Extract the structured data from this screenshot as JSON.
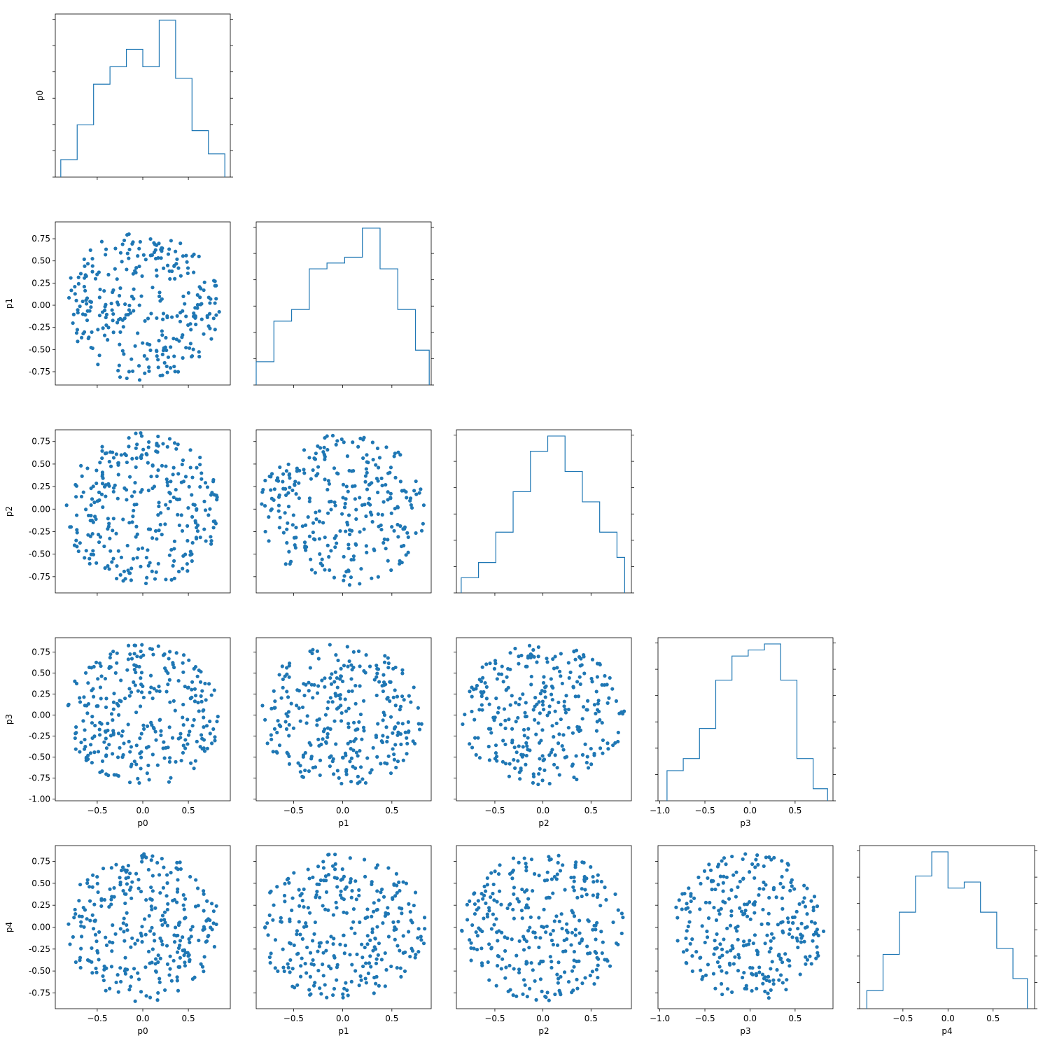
{
  "figure": {
    "parameters": [
      "p0",
      "p1",
      "p2",
      "p3",
      "p4"
    ],
    "histogram_color": "#1f77b4",
    "point_color": "#1f77b4"
  },
  "chart_data": [
    {
      "type": "histogram",
      "param": "p0",
      "row": 0,
      "col": 0,
      "bin_edges": [
        -0.9,
        -0.72,
        -0.54,
        -0.36,
        -0.18,
        0.0,
        0.18,
        0.36,
        0.54,
        0.72,
        0.9
      ],
      "counts": [
        3,
        9,
        16,
        19,
        22,
        19,
        27,
        17,
        8,
        4
      ],
      "ylabel": "p0"
    },
    {
      "type": "scatter",
      "x_param": "p0",
      "y_param": "p1",
      "row": 1,
      "col": 0,
      "xlim": [
        -0.96,
        0.96
      ],
      "ylim": [
        -0.9,
        0.94
      ],
      "yticks": [
        "-0.75",
        "-0.50",
        "-0.25",
        "0.00",
        "0.25",
        "0.50",
        "0.75"
      ],
      "ylabel": "p1",
      "n_points": 300
    },
    {
      "type": "histogram",
      "param": "p1",
      "row": 1,
      "col": 1,
      "bin_edges": [
        -0.88,
        -0.7,
        -0.52,
        -0.34,
        -0.16,
        0.02,
        0.2,
        0.38,
        0.56,
        0.74,
        0.88
      ],
      "counts": [
        4,
        11,
        13,
        20,
        21,
        22,
        27,
        20,
        13,
        6
      ]
    },
    {
      "type": "scatter",
      "x_param": "p0",
      "y_param": "p2",
      "row": 2,
      "col": 0,
      "xlim": [
        -0.96,
        0.96
      ],
      "ylim": [
        -0.93,
        0.88
      ],
      "yticks": [
        "-0.75",
        "-0.50",
        "-0.25",
        "0.00",
        "0.25",
        "0.50",
        "0.75"
      ],
      "ylabel": "p2",
      "n_points": 300
    },
    {
      "type": "scatter",
      "x_param": "p1",
      "y_param": "p2",
      "row": 2,
      "col": 1,
      "n_points": 300
    },
    {
      "type": "histogram",
      "param": "p2",
      "row": 2,
      "col": 2,
      "bin_edges": [
        -0.85,
        -0.67,
        -0.49,
        -0.31,
        -0.13,
        0.05,
        0.23,
        0.41,
        0.59,
        0.77,
        0.85
      ],
      "counts": [
        3,
        6,
        12,
        20,
        28,
        31,
        24,
        18,
        12,
        7
      ]
    },
    {
      "type": "scatter",
      "x_param": "p0",
      "y_param": "p3",
      "row": 3,
      "col": 0,
      "xlim": [
        -0.96,
        0.96
      ],
      "ylim": [
        -1.02,
        0.92
      ],
      "yticks": [
        "-1.00",
        "-0.75",
        "-0.50",
        "-0.25",
        "0.00",
        "0.25",
        "0.50",
        "0.75"
      ],
      "ylabel": "p3",
      "xticks": [
        "-0.5",
        "0.0",
        "0.5"
      ],
      "xlabel": "p0",
      "n_points": 300
    },
    {
      "type": "scatter",
      "x_param": "p1",
      "y_param": "p3",
      "row": 3,
      "col": 1,
      "xticks": [
        "-0.5",
        "0.0",
        "0.5"
      ],
      "xlabel": "p1",
      "n_points": 300
    },
    {
      "type": "scatter",
      "x_param": "p2",
      "y_param": "p3",
      "row": 3,
      "col": 2,
      "xticks": [
        "-0.5",
        "0.0",
        "0.5"
      ],
      "xlabel": "p2",
      "n_points": 300
    },
    {
      "type": "histogram",
      "param": "p3",
      "row": 3,
      "col": 3,
      "bin_edges": [
        -0.92,
        -0.74,
        -0.56,
        -0.38,
        -0.2,
        -0.02,
        0.16,
        0.34,
        0.52,
        0.7,
        0.86
      ],
      "counts": [
        5,
        7,
        12,
        20,
        24,
        25,
        26,
        20,
        7,
        2
      ],
      "xticks": [
        "-1.0",
        "-0.5",
        "0.0",
        "0.5"
      ],
      "xlabel": "p3"
    },
    {
      "type": "scatter",
      "x_param": "p0",
      "y_param": "p4",
      "row": 4,
      "col": 0,
      "xlim": [
        -0.96,
        0.96
      ],
      "ylim": [
        -0.93,
        0.93
      ],
      "yticks": [
        "-0.75",
        "-0.50",
        "-0.25",
        "0.00",
        "0.25",
        "0.50",
        "0.75"
      ],
      "ylabel": "p4",
      "xticks": [
        "-0.5",
        "0.0",
        "0.5"
      ],
      "xlabel": "p0",
      "n_points": 300
    },
    {
      "type": "scatter",
      "x_param": "p1",
      "y_param": "p4",
      "row": 4,
      "col": 1,
      "xticks": [
        "-0.5",
        "0.0",
        "0.5"
      ],
      "xlabel": "p1",
      "n_points": 300
    },
    {
      "type": "scatter",
      "x_param": "p2",
      "y_param": "p4",
      "row": 4,
      "col": 2,
      "xticks": [
        "-0.5",
        "0.0",
        "0.5"
      ],
      "xlabel": "p2",
      "n_points": 300
    },
    {
      "type": "scatter",
      "x_param": "p3",
      "y_param": "p4",
      "row": 4,
      "col": 3,
      "xticks": [
        "-1.0",
        "-0.5",
        "0.0",
        "0.5"
      ],
      "xlabel": "p3",
      "n_points": 300
    },
    {
      "type": "histogram",
      "param": "p4",
      "row": 4,
      "col": 4,
      "bin_edges": [
        -0.9,
        -0.72,
        -0.54,
        -0.36,
        -0.18,
        0.0,
        0.18,
        0.36,
        0.54,
        0.72,
        0.88
      ],
      "counts": [
        3,
        9,
        16,
        22,
        26,
        20,
        21,
        16,
        10,
        5
      ],
      "xticks": [
        "-0.5",
        "0.0",
        "0.5"
      ],
      "xlabel": "p4"
    }
  ]
}
